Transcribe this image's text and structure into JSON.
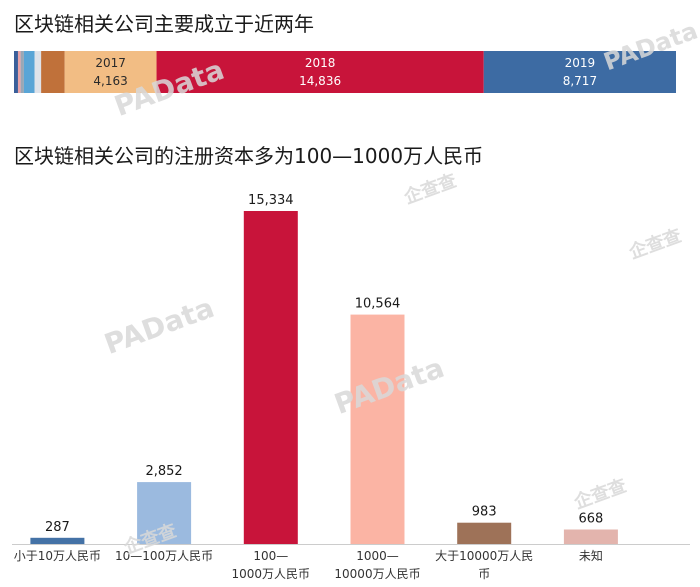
{
  "charts": {
    "years": {
      "title": "区块链相关公司主要成立于近两年",
      "chart_data": {
        "type": "bar",
        "orientation": "horizontal-stacked",
        "segments": [
          {
            "name": "",
            "value": 180,
            "color": "#3a5f9a"
          },
          {
            "name": "",
            "value": 120,
            "color": "#e7a3a8"
          },
          {
            "name": "",
            "value": 150,
            "color": "#9aa7b5"
          },
          {
            "name": "",
            "value": 480,
            "color": "#5aa5d6"
          },
          {
            "name": "",
            "value": 300,
            "color": "#dfe3ea"
          },
          {
            "name": "",
            "value": 1070,
            "color": "#c0713a"
          },
          {
            "name": "2017",
            "value": 4163,
            "label": "4,163",
            "color": "#f2bd84"
          },
          {
            "name": "2018",
            "value": 14836,
            "label": "14,836",
            "color": "#c8143a"
          },
          {
            "name": "2019",
            "value": 8717,
            "label": "8,717",
            "color": "#3d6ba3"
          }
        ]
      }
    },
    "capital": {
      "title": "区块链相关公司的注册资本多为100—1000万人民币",
      "chart_data": {
        "type": "bar",
        "categories": [
          [
            "小于10万人民币"
          ],
          [
            "10—100万人民币"
          ],
          [
            "100—",
            "1000万人民币"
          ],
          [
            "1000—",
            "10000万人民币"
          ],
          [
            "大于10000万人民",
            "币"
          ],
          [
            "未知"
          ]
        ],
        "values": [
          287,
          2852,
          15334,
          10564,
          983,
          668
        ],
        "value_labels": [
          "287",
          "2,852",
          "15,334",
          "10,564",
          "983",
          "668"
        ],
        "colors": [
          "#4472a6",
          "#9bbadf",
          "#c8143a",
          "#fbb4a4",
          "#9e7258",
          "#e3b4ad"
        ],
        "ylim": [
          0,
          15334
        ]
      }
    }
  },
  "watermarks": [
    "PAData",
    "PAData",
    "PAData",
    "PAData",
    "企查查",
    "企查查",
    "企查查",
    "企查查"
  ]
}
